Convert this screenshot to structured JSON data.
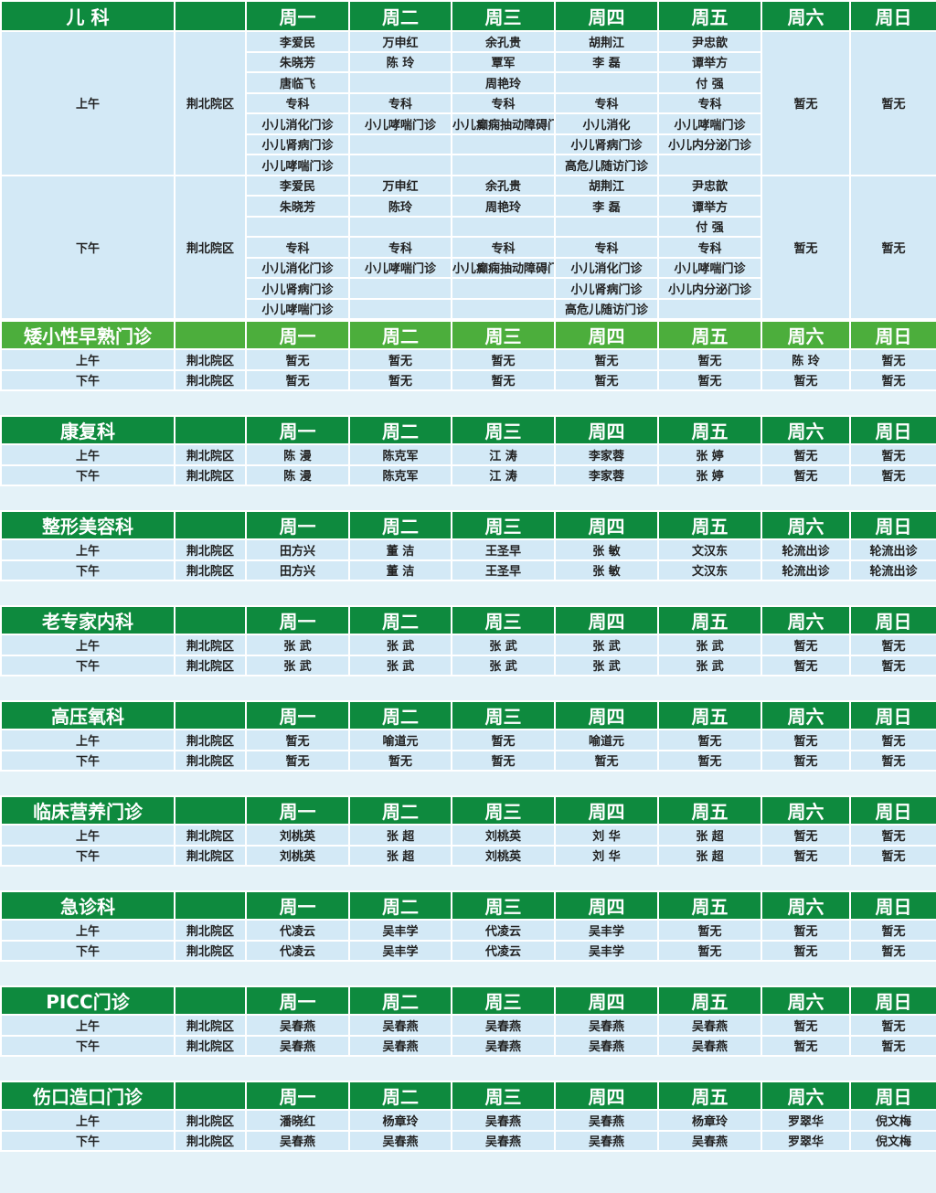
{
  "days": [
    "周一",
    "周二",
    "周三",
    "周四",
    "周五",
    "周六",
    "周日"
  ],
  "campus": "荆北院区",
  "periods": [
    "上午",
    "下午"
  ],
  "colors": {
    "header_green": "#0e8a3e",
    "header_light_green": "#4cae3c",
    "cell_blue": "#d3e9f6",
    "background": "#e4f2f8"
  },
  "pediatrics": {
    "name": "儿 科",
    "weekend": "暂无",
    "am": [
      [
        "李爱民",
        "朱晓芳",
        "唐临飞",
        "专科",
        "小儿消化门诊",
        "小儿肾病门诊",
        "小儿哮喘门诊"
      ],
      [
        "万申红",
        "陈 玲",
        "",
        "专科",
        "小儿哮喘门诊",
        "",
        ""
      ],
      [
        "余孔贵",
        "覃军",
        "周艳玲",
        "专科",
        "小儿癫痫抽动障碍门诊",
        "",
        ""
      ],
      [
        "胡荆江",
        "李 磊",
        "",
        "专科",
        "小儿消化",
        "小儿肾病门诊",
        "高危儿随访门诊"
      ],
      [
        "尹忠歆",
        "谭举方",
        "付 强",
        "专科",
        "小儿哮喘门诊",
        "小儿内分泌门诊",
        ""
      ]
    ],
    "pm": [
      [
        "李爱民",
        "朱晓芳",
        "",
        "专科",
        "小儿消化门诊",
        "小儿肾病门诊",
        "小儿哮喘门诊"
      ],
      [
        "万申红",
        "陈玲",
        "",
        "专科",
        "小儿哮喘门诊",
        "",
        ""
      ],
      [
        "余孔贵",
        "周艳玲",
        "",
        "专科",
        "小儿癫痫抽动障碍门诊",
        "",
        ""
      ],
      [
        "胡荆江",
        "李 磊",
        "",
        "专科",
        "小儿消化门诊",
        "小儿肾病门诊",
        "高危儿随访门诊"
      ],
      [
        "尹忠歆",
        "谭举方",
        "付 强",
        "专科",
        "小儿哮喘门诊",
        "小儿内分泌门诊",
        ""
      ]
    ]
  },
  "sections": [
    {
      "name": "矮小性早熟门诊",
      "light": true,
      "gap_after": true,
      "am": [
        "暂无",
        "暂无",
        "暂无",
        "暂无",
        "暂无",
        "陈 玲",
        "暂无"
      ],
      "pm": [
        "暂无",
        "暂无",
        "暂无",
        "暂无",
        "暂无",
        "暂无",
        "暂无"
      ]
    },
    {
      "name": "康复科",
      "gap_after": true,
      "am": [
        "陈 漫",
        "陈克军",
        "江 涛",
        "李家蓉",
        "张 婷",
        "暂无",
        "暂无"
      ],
      "pm": [
        "陈 漫",
        "陈克军",
        "江 涛",
        "李家蓉",
        "张 婷",
        "暂无",
        "暂无"
      ]
    },
    {
      "name": "整形美容科",
      "gap_after": true,
      "am": [
        "田方兴",
        "董 洁",
        "王圣早",
        "张 敏",
        "文汉东",
        "轮流出诊",
        "轮流出诊"
      ],
      "pm": [
        "田方兴",
        "董 洁",
        "王圣早",
        "张 敏",
        "文汉东",
        "轮流出诊",
        "轮流出诊"
      ]
    },
    {
      "name": "老专家内科",
      "gap_after": true,
      "am": [
        "张 武",
        "张 武",
        "张 武",
        "张 武",
        "张 武",
        "暂无",
        "暂无"
      ],
      "pm": [
        "张 武",
        "张 武",
        "张 武",
        "张 武",
        "张 武",
        "暂无",
        "暂无"
      ]
    },
    {
      "name": "高压氧科",
      "gap_after": true,
      "am": [
        "暂无",
        "喻道元",
        "暂无",
        "喻道元",
        "暂无",
        "暂无",
        "暂无"
      ],
      "pm": [
        "暂无",
        "暂无",
        "暂无",
        "暂无",
        "暂无",
        "暂无",
        "暂无"
      ]
    },
    {
      "name": "临床营养门诊",
      "gap_after": true,
      "am": [
        "刘桃英",
        "张 超",
        "刘桃英",
        "刘 华",
        "张 超",
        "暂无",
        "暂无"
      ],
      "pm": [
        "刘桃英",
        "张 超",
        "刘桃英",
        "刘 华",
        "张 超",
        "暂无",
        "暂无"
      ]
    },
    {
      "name": "急诊科",
      "gap_after": true,
      "am": [
        "代凌云",
        "吴丰学",
        "代凌云",
        "吴丰学",
        "暂无",
        "暂无",
        "暂无"
      ],
      "pm": [
        "代凌云",
        "吴丰学",
        "代凌云",
        "吴丰学",
        "暂无",
        "暂无",
        "暂无"
      ]
    },
    {
      "name": "PICC门诊",
      "gap_after": true,
      "am": [
        "吴春燕",
        "吴春燕",
        "吴春燕",
        "吴春燕",
        "吴春燕",
        "暂无",
        "暂无"
      ],
      "pm": [
        "吴春燕",
        "吴春燕",
        "吴春燕",
        "吴春燕",
        "吴春燕",
        "暂无",
        "暂无"
      ]
    },
    {
      "name": "伤口造口门诊",
      "gap_after": false,
      "am": [
        "潘晓红",
        "杨章玲",
        "吴春燕",
        "吴春燕",
        "杨章玲",
        "罗翠华",
        "倪文梅"
      ],
      "pm": [
        "吴春燕",
        "吴春燕",
        "吴春燕",
        "吴春燕",
        "吴春燕",
        "罗翠华",
        "倪文梅"
      ]
    }
  ]
}
